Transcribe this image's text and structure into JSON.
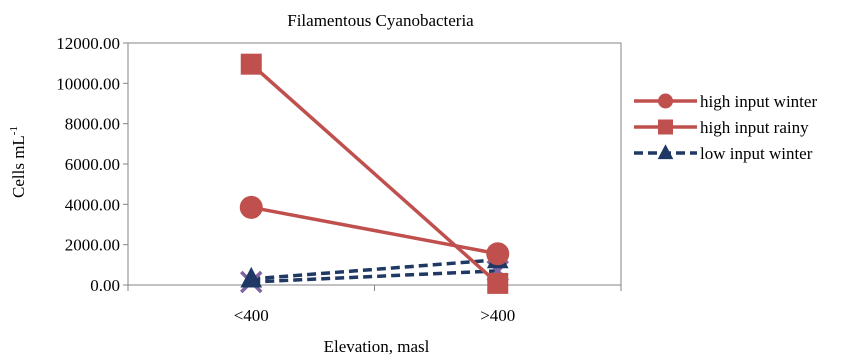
{
  "chart_data": {
    "type": "line",
    "title": "Filamentous Cyanobacteria",
    "xlabel": "Elevation, masl",
    "ylabel": "Cells  mL",
    "ylabel_superscript": "-1",
    "categories": [
      "<400",
      ">400"
    ],
    "ylim": [
      0,
      12000
    ],
    "yticks": [
      0,
      2000,
      4000,
      6000,
      8000,
      10000,
      12000
    ],
    "ytick_labels": [
      "0.00",
      "2000.00",
      "4000.00",
      "6000.00",
      "8000.00",
      "10000.00",
      "12000.00"
    ],
    "grid": false,
    "legend_position": "right",
    "series": [
      {
        "name": "high input winter",
        "values": [
          3850,
          1550
        ],
        "color": "#c0504d",
        "marker": "circle",
        "dash": "solid",
        "in_legend": true
      },
      {
        "name": "high input rainy",
        "values": [
          10950,
          80
        ],
        "color": "#c0504d",
        "marker": "square",
        "dash": "solid",
        "in_legend": true
      },
      {
        "name": "low input winter",
        "values": [
          300,
          1250
        ],
        "color": "#1f3864",
        "marker": "triangle",
        "dash": "dashed",
        "in_legend": true
      },
      {
        "values": [
          150,
          700
        ],
        "color": "#1f3864",
        "marker": "x",
        "dash": "dashed",
        "in_legend": false
      }
    ]
  }
}
